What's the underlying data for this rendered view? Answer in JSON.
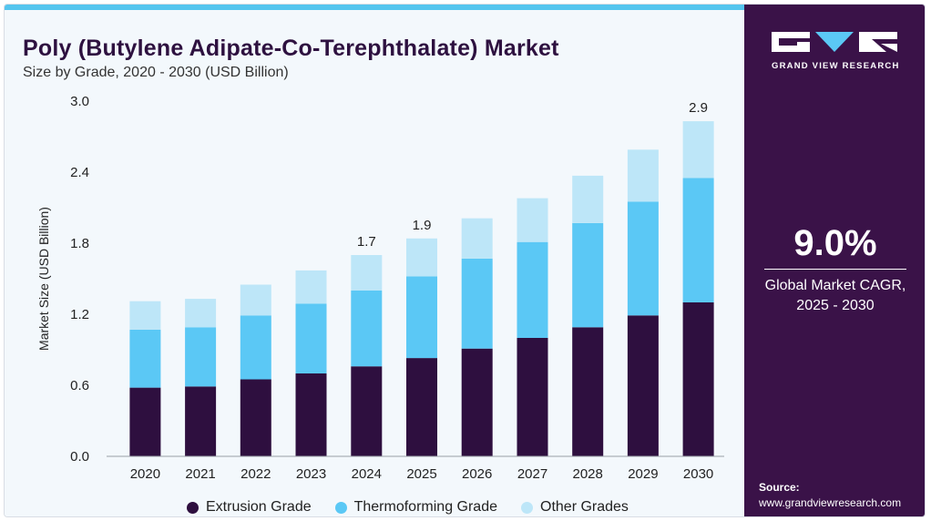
{
  "header": {
    "title": "Poly (Butylene Adipate-Co-Terephthalate) Market",
    "subtitle": "Size by Grade, 2020 - 2030 (USD Billion)"
  },
  "brand": {
    "name": "GRAND VIEW RESEARCH",
    "logo_icon": "gvr-logo-icon"
  },
  "cagr": {
    "value": "9.0%",
    "label_line1": "Global Market CAGR,",
    "label_line2": "2025 - 2030"
  },
  "source": {
    "label": "Source:",
    "url": "www.grandviewresearch.com"
  },
  "colors": {
    "extrusion": "#2e0f3f",
    "thermoforming": "#5bc8f5",
    "other": "#bde6f8",
    "panel": "#3a1248"
  },
  "chart_data": {
    "type": "bar",
    "stacked": true,
    "ylabel": "Market Size (USD Billion)",
    "xlabel": "",
    "ylim": [
      0,
      3.0
    ],
    "yticks": [
      "0.0",
      "0.6",
      "1.2",
      "1.8",
      "2.4",
      "3.0"
    ],
    "categories": [
      "2020",
      "2021",
      "2022",
      "2023",
      "2024",
      "2025",
      "2026",
      "2027",
      "2028",
      "2029",
      "2030"
    ],
    "series": [
      {
        "name": "Extrusion Grade",
        "values": [
          0.58,
          0.59,
          0.65,
          0.7,
          0.76,
          0.83,
          0.91,
          1.0,
          1.09,
          1.19,
          1.3
        ]
      },
      {
        "name": "Thermoforming Grade",
        "values": [
          0.49,
          0.5,
          0.54,
          0.59,
          0.64,
          0.69,
          0.76,
          0.81,
          0.88,
          0.96,
          1.05
        ]
      },
      {
        "name": "Other Grades",
        "values": [
          0.24,
          0.24,
          0.26,
          0.28,
          0.3,
          0.32,
          0.34,
          0.37,
          0.4,
          0.44,
          0.48
        ]
      }
    ],
    "annotations": [
      {
        "category": "2024",
        "text": "1.7"
      },
      {
        "category": "2025",
        "text": "1.9"
      },
      {
        "category": "2030",
        "text": "2.9"
      }
    ],
    "grid": false,
    "legend": "bottom"
  }
}
